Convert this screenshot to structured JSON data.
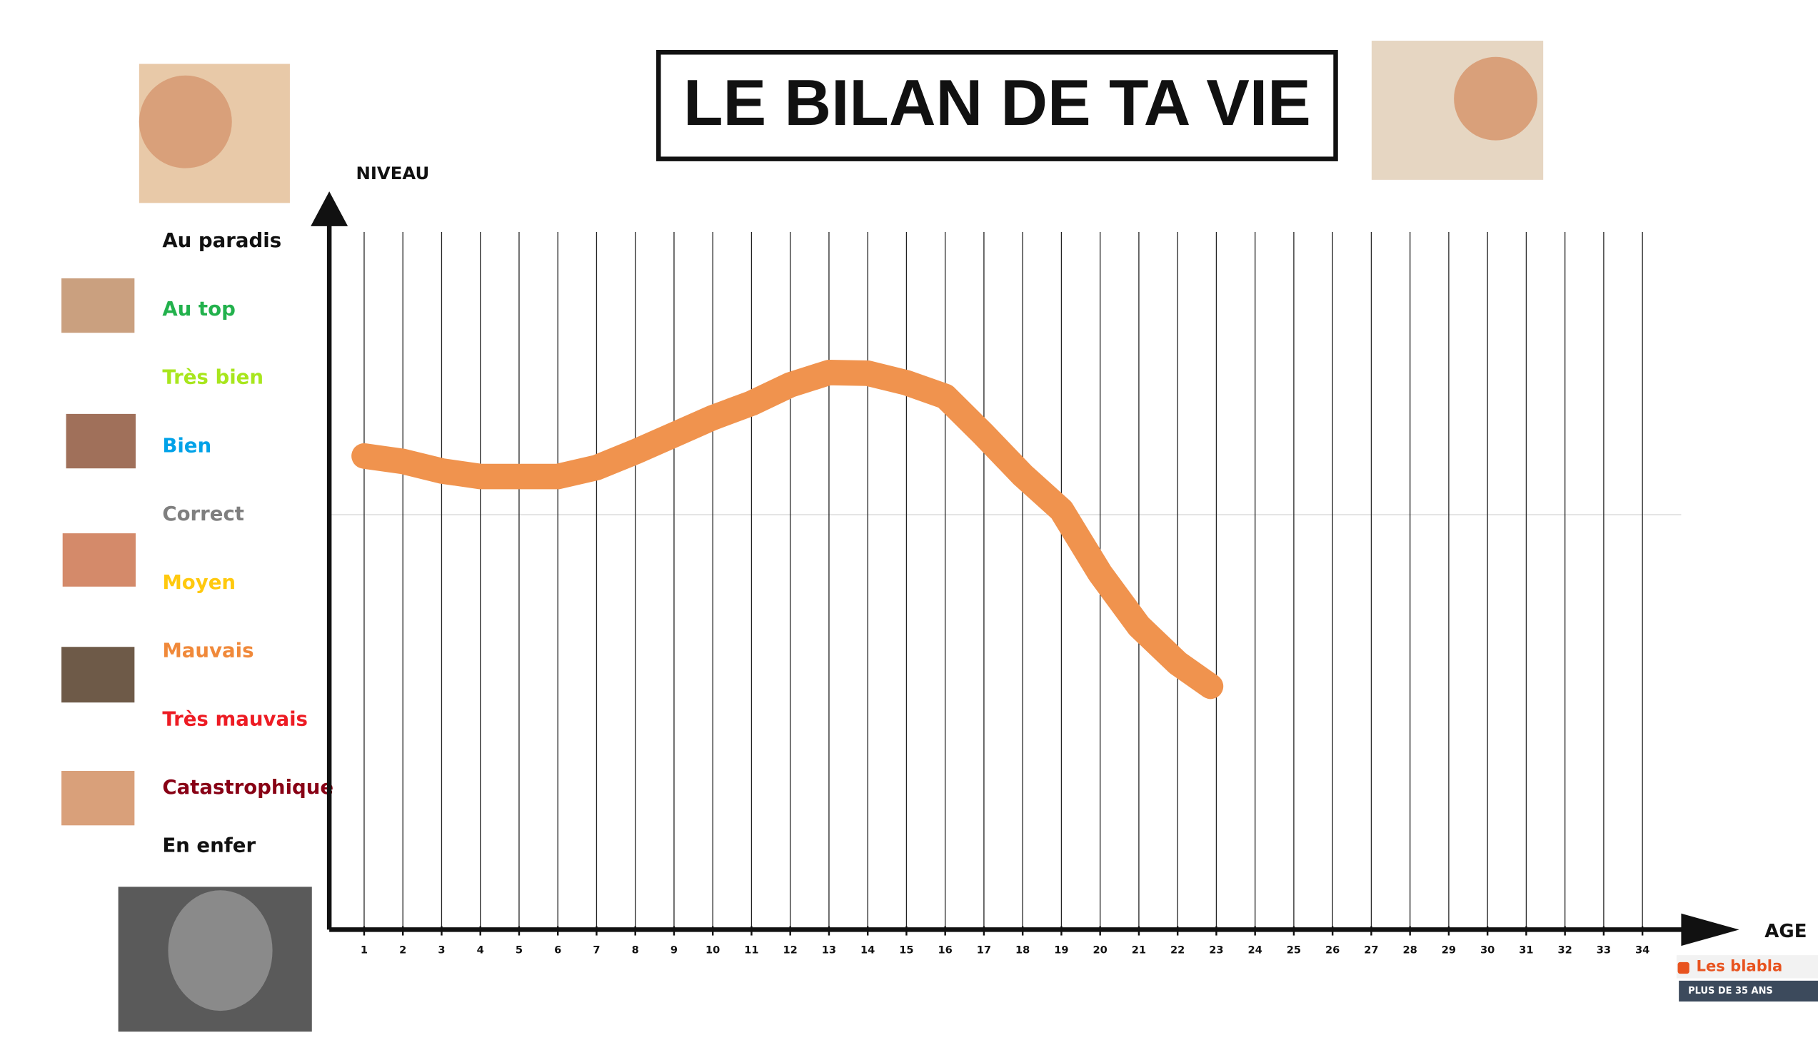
{
  "chart_data": {
    "type": "line",
    "title": "LE BILAN DE TA VIE",
    "y_label": "NIVEAU",
    "x_label": "AGE",
    "xlim": [
      0.1,
      35
    ],
    "xticks": [
      1,
      2,
      3,
      4,
      5,
      6,
      7,
      8,
      9,
      10,
      11,
      12,
      13,
      14,
      15,
      16,
      17,
      18,
      19,
      20,
      21,
      22,
      23,
      24,
      25,
      26,
      27,
      28,
      29,
      30,
      31,
      32,
      33,
      34
    ],
    "ylim": [
      -1.07,
      9.73
    ],
    "yticks": [
      {
        "value": 9,
        "label": "Au paradis"
      },
      {
        "value": 8,
        "label": "Au top"
      },
      {
        "value": 7,
        "label": "Très bien"
      },
      {
        "value": 6,
        "label": "Bien"
      },
      {
        "value": 5,
        "label": "Correct"
      },
      {
        "value": 4,
        "label": "Moyen"
      },
      {
        "value": 3,
        "label": "Mauvais"
      },
      {
        "value": 2,
        "label": "Très mauvais"
      },
      {
        "value": 1,
        "label": "Catastrophique"
      },
      {
        "value": 0.15,
        "label": "En enfer"
      }
    ],
    "ytick_colors": [
      "#111111",
      "#22b14c",
      "#a8e61d",
      "#00a2e8",
      "#7f7f7f",
      "#ffc90e",
      "#f0893a",
      "#ed1c24",
      "#880015",
      "#111111"
    ],
    "reference_line": 5,
    "grid": true,
    "series": [
      {
        "color": "#f0934e",
        "x": [
          1,
          2,
          3,
          4,
          5,
          6,
          7,
          8,
          9,
          10,
          11,
          12,
          13,
          14,
          15,
          16,
          17,
          18,
          19,
          20,
          21,
          22,
          22.85
        ],
        "values": [
          5.86,
          5.78,
          5.64,
          5.56,
          5.56,
          5.56,
          5.69,
          5.92,
          6.17,
          6.42,
          6.63,
          6.9,
          7.08,
          7.07,
          6.93,
          6.73,
          6.17,
          5.58,
          5.07,
          4.14,
          3.37,
          2.83,
          2.49
        ]
      }
    ]
  },
  "forum_badge": {
    "title": "Les blabla",
    "subtitle": "PLUS DE 35 ANS"
  }
}
